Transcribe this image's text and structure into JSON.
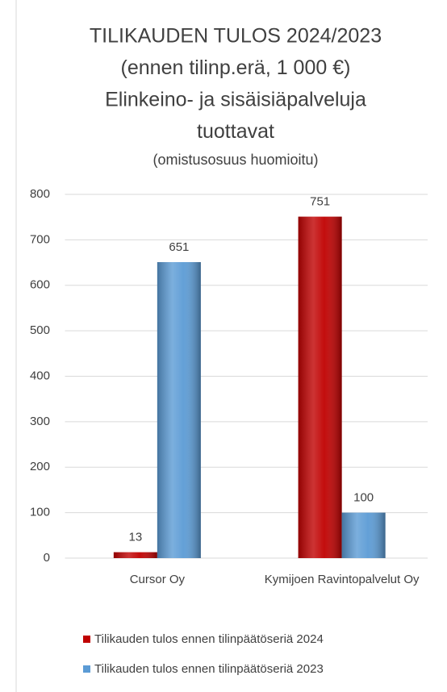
{
  "chart_data": {
    "type": "bar",
    "title": [
      "TILIKAUDEN TULOS 2024/2023",
      "(ennen tilinp.erä, 1 000 €)",
      "Elinkeino- ja sisäisiäpalveluja",
      "tuottavat"
    ],
    "subtitle": "(omistusosuus huomioitu)",
    "categories": [
      "Cursor Oy",
      "Kymijoen Ravintopalvelut Oy"
    ],
    "series": [
      {
        "name": "Tilikauden tulos ennen tilinpäätöseriä 2024",
        "color": "#c00000",
        "values": [
          13,
          751
        ]
      },
      {
        "name": "Tilikauden tulos ennen tilinpäätöseriä 2023",
        "color": "#5b9bd5",
        "values": [
          651,
          100
        ]
      }
    ],
    "ylim": [
      0,
      800
    ],
    "yticks": [
      0,
      100,
      200,
      300,
      400,
      500,
      600,
      700,
      800
    ],
    "grid": true,
    "legend": "bottom"
  }
}
